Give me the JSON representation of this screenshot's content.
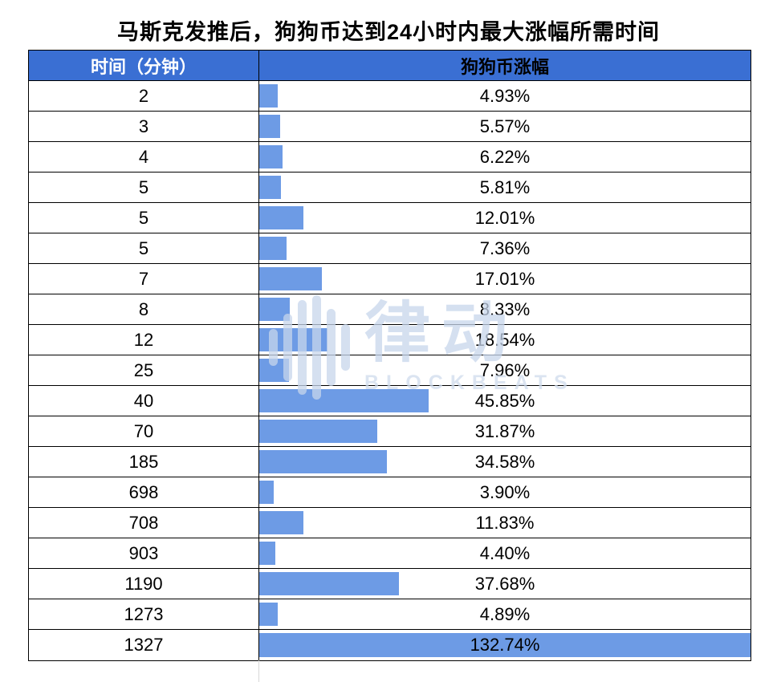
{
  "title": "马斯克发推后，狗狗币达到24小时内最大涨幅所需时间",
  "table": {
    "col1_header": "时间（分钟）",
    "col2_header": "狗狗币涨幅"
  },
  "watermark": {
    "cn": "律动",
    "en": "BLOCKBEATS"
  },
  "colors": {
    "header_bg": "#3a6fd3",
    "bar": "#6d9be5",
    "border": "#000000",
    "watermark": "#c7d6ec"
  },
  "chart_data": {
    "type": "bar",
    "orientation": "horizontal",
    "title": "马斯克发推后，狗狗币达到24小时内最大涨幅所需时间",
    "xlabel": "时间（分钟）",
    "ylabel": "狗狗币涨幅",
    "legend": false,
    "grid": false,
    "max_value": 132.74,
    "categories": [
      "2",
      "3",
      "4",
      "5",
      "5",
      "5",
      "7",
      "8",
      "12",
      "25",
      "40",
      "70",
      "185",
      "698",
      "708",
      "903",
      "1190",
      "1273",
      "1327"
    ],
    "values": [
      4.93,
      5.57,
      6.22,
      5.81,
      12.01,
      7.36,
      17.01,
      8.33,
      18.54,
      7.96,
      45.85,
      31.87,
      34.58,
      3.9,
      11.83,
      4.4,
      37.68,
      4.89,
      132.74
    ],
    "value_labels": [
      "4.93%",
      "5.57%",
      "6.22%",
      "5.81%",
      "12.01%",
      "7.36%",
      "17.01%",
      "8.33%",
      "18.54%",
      "7.96%",
      "45.85%",
      "31.87%",
      "34.58%",
      "3.90%",
      "11.83%",
      "4.40%",
      "37.68%",
      "4.89%",
      "132.74%"
    ]
  }
}
